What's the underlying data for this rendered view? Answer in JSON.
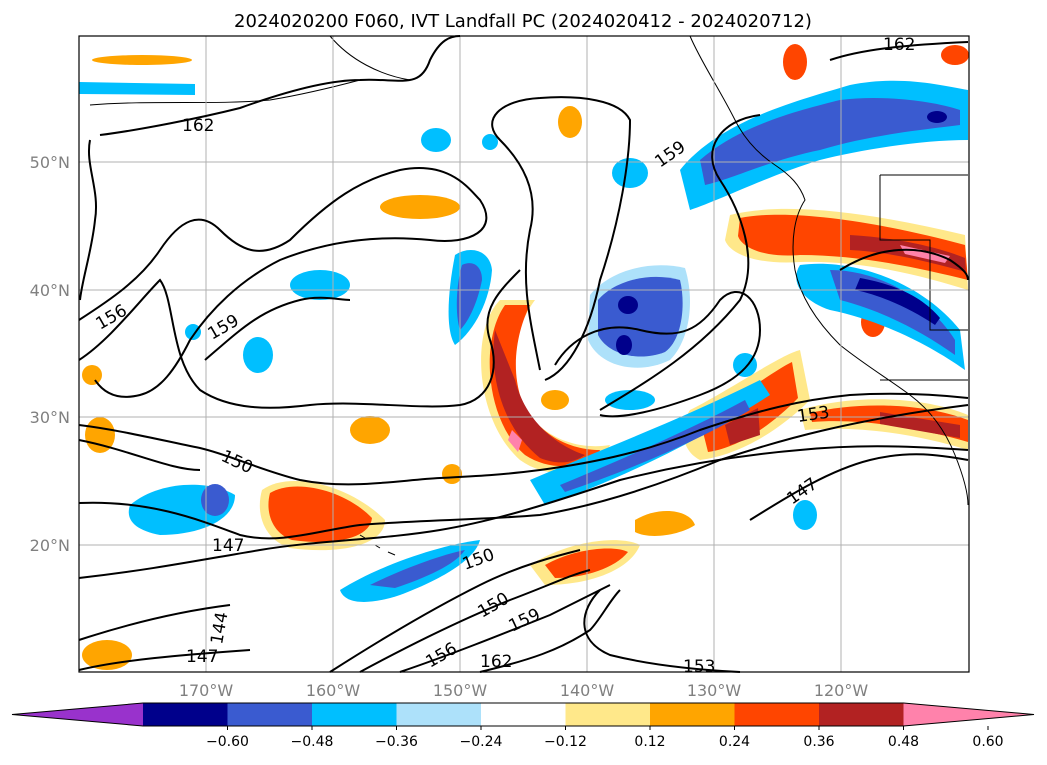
{
  "map": {
    "title": "2024020200 F060, IVT Landfall PC (2024020412 - 2024020712)",
    "lat_labels": [
      "50°N",
      "40°N",
      "30°N",
      "20°N"
    ],
    "lon_labels": [
      "170°W",
      "160°W",
      "150°W",
      "140°W",
      "130°W",
      "120°W"
    ],
    "contour_labels": [
      "162",
      "162",
      "159",
      "156",
      "159",
      "153",
      "150",
      "147",
      "147",
      "150",
      "150",
      "144",
      "147",
      "159",
      "156",
      "162",
      "153"
    ]
  },
  "colorbar": {
    "tick_labels": [
      "−0.60",
      "−0.48",
      "−0.36",
      "−0.24",
      "−0.12",
      "0.12",
      "0.24",
      "0.36",
      "0.48",
      "0.60"
    ],
    "colors": [
      "#9932CC",
      "#00008B",
      "#3A5BD0",
      "#00BFFF",
      "#ADE1FA",
      "#FFFFFF",
      "#FFE88A",
      "#FFA500",
      "#FF4500",
      "#B22222",
      "#FF82AB"
    ]
  }
}
